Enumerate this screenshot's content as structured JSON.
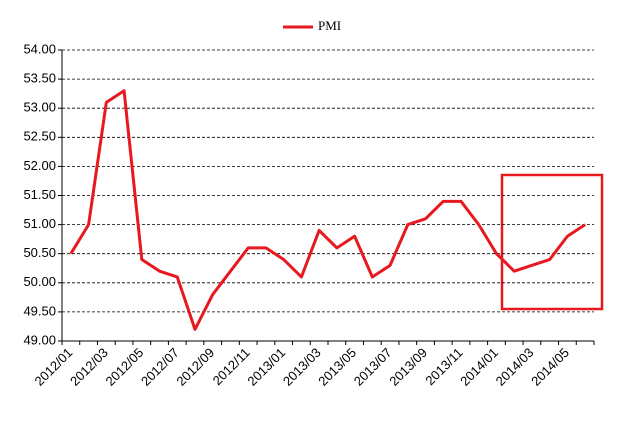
{
  "chart_data": {
    "type": "line",
    "categories": [
      "2012/01",
      null,
      "2012/03",
      null,
      "2012/05",
      null,
      "2012/07",
      null,
      "2012/09",
      null,
      "2012/11",
      null,
      "2013/01",
      null,
      "2013/03",
      null,
      "2013/05",
      null,
      "2013/07",
      null,
      "2013/09",
      null,
      "2013/11",
      null,
      "2014/01",
      null,
      "2014/03",
      null,
      "2014/05",
      null
    ],
    "series": [
      {
        "name": "PMI",
        "color": "#e8191e",
        "values": [
          50.5,
          51.0,
          53.1,
          53.3,
          50.4,
          50.2,
          50.1,
          49.2,
          49.8,
          50.2,
          50.6,
          50.6,
          50.4,
          50.1,
          50.9,
          50.6,
          50.8,
          50.1,
          50.3,
          51.0,
          51.1,
          51.4,
          51.4,
          51.0,
          50.5,
          50.2,
          50.3,
          50.4,
          50.8,
          51.0
        ]
      }
    ],
    "ylim": [
      49,
      54
    ],
    "yticks": [
      {
        "value": 49,
        "label": "49.00"
      },
      {
        "value": 49.5,
        "label": "49.50"
      },
      {
        "value": 50,
        "label": "50.00"
      },
      {
        "value": 50.5,
        "label": "50.50"
      },
      {
        "value": 51,
        "label": "51.00"
      },
      {
        "value": 51.5,
        "label": "51.50"
      },
      {
        "value": 52,
        "label": "52.00"
      },
      {
        "value": 52.5,
        "label": "52.50"
      },
      {
        "value": 53,
        "label": "53.00"
      },
      {
        "value": 53.5,
        "label": "53.50"
      },
      {
        "value": 54,
        "label": "54.00"
      }
    ],
    "grid": true,
    "legend": "top"
  }
}
